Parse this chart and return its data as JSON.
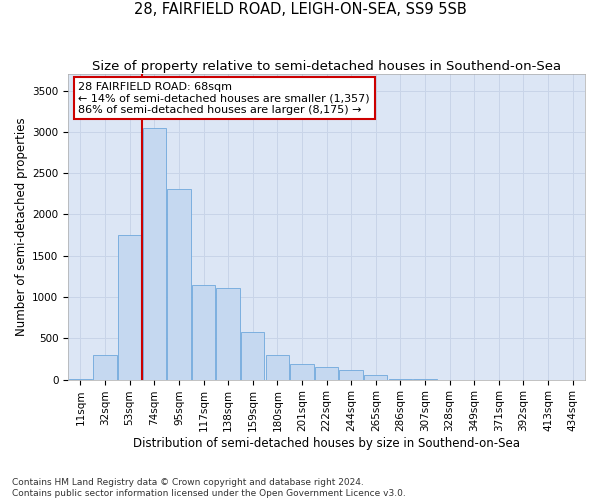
{
  "title": "28, FAIRFIELD ROAD, LEIGH-ON-SEA, SS9 5SB",
  "subtitle": "Size of property relative to semi-detached houses in Southend-on-Sea",
  "xlabel": "Distribution of semi-detached houses by size in Southend-on-Sea",
  "ylabel": "Number of semi-detached properties",
  "footnote1": "Contains HM Land Registry data © Crown copyright and database right 2024.",
  "footnote2": "Contains public sector information licensed under the Open Government Licence v3.0.",
  "property_size": 68,
  "property_label": "28 FAIRFIELD ROAD: 68sqm",
  "pct_smaller": 14,
  "pct_larger": 86,
  "n_smaller": 1357,
  "n_larger": 8175,
  "bar_color": "#c5d8f0",
  "bar_edge_color": "#6fa8dc",
  "vline_color": "#cc0000",
  "annotation_box_edge": "#cc0000",
  "grid_color": "#c8d4e8",
  "bg_color": "#dce6f5",
  "categories": [
    "11sqm",
    "32sqm",
    "53sqm",
    "74sqm",
    "95sqm",
    "117sqm",
    "138sqm",
    "159sqm",
    "180sqm",
    "201sqm",
    "222sqm",
    "244sqm",
    "265sqm",
    "286sqm",
    "307sqm",
    "328sqm",
    "349sqm",
    "371sqm",
    "392sqm",
    "413sqm",
    "434sqm"
  ],
  "values": [
    5,
    295,
    1750,
    3050,
    2310,
    1140,
    1110,
    575,
    295,
    185,
    150,
    115,
    50,
    10,
    5,
    0,
    0,
    0,
    0,
    0,
    0
  ],
  "ylim": [
    0,
    3700
  ],
  "yticks": [
    0,
    500,
    1000,
    1500,
    2000,
    2500,
    3000,
    3500
  ],
  "title_fontsize": 10.5,
  "subtitle_fontsize": 9.5,
  "axis_label_fontsize": 8.5,
  "tick_fontsize": 7.5,
  "annotation_fontsize": 8,
  "footnote_fontsize": 6.5
}
